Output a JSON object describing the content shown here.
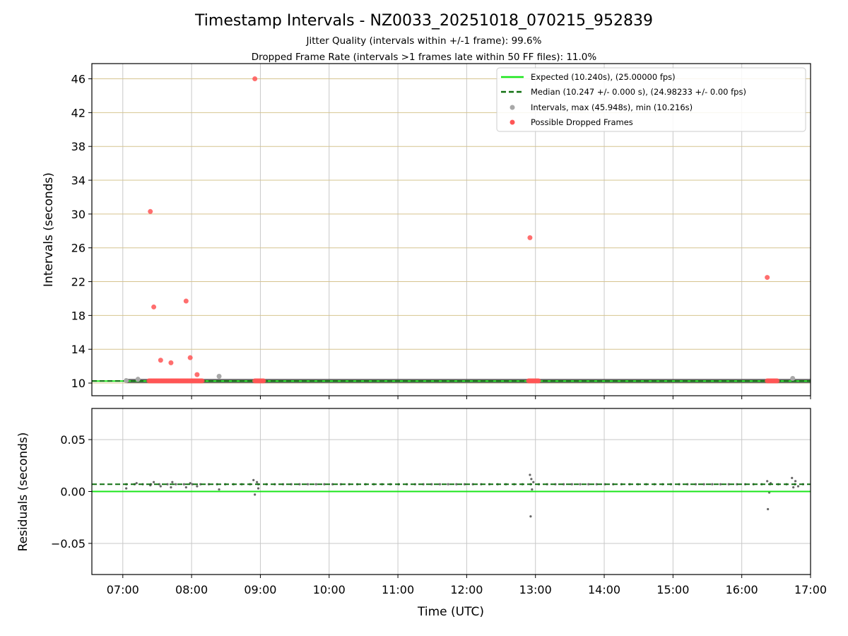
{
  "chart_data": {
    "type": "scatter",
    "title": "Timestamp Intervals - NZ0033_20251018_070215_952839",
    "subtitle_lines": [
      "Jitter Quality (intervals within +/-1 frame): 99.6%",
      "Dropped Frame Rate (intervals >1 frames late within 50 FF files): 11.0%"
    ],
    "xlabel": "Time (UTC)",
    "xlim": [
      6.55,
      17.0
    ],
    "xticks": [
      7,
      8,
      9,
      10,
      11,
      12,
      13,
      14,
      15,
      16,
      17
    ],
    "xtick_labels": [
      "07:00",
      "08:00",
      "09:00",
      "10:00",
      "11:00",
      "12:00",
      "13:00",
      "14:00",
      "15:00",
      "16:00",
      "17:00"
    ],
    "top_panel": {
      "ylabel": "Intervals (seconds)",
      "ylim": [
        8.5,
        47.8
      ],
      "yticks": [
        10,
        14,
        18,
        22,
        26,
        30,
        34,
        38,
        42,
        46
      ],
      "ytick_labels": [
        "10",
        "14",
        "18",
        "22",
        "26",
        "30",
        "34",
        "38",
        "42",
        "46"
      ],
      "expected": 10.24,
      "median": 10.247,
      "legend": [
        {
          "label": "Expected (10.240s), (25.00000 fps)",
          "kind": "solid",
          "color": "#19e619"
        },
        {
          "label": "Median (10.247 +/- 0.000 s), (24.98233 +/- 0.00 fps)",
          "kind": "dashed",
          "color": "#107010"
        },
        {
          "label": "Intervals, max (45.948s), min (10.216s)",
          "kind": "dot",
          "color": "#a8a8a8"
        },
        {
          "label": "Possible Dropped Frames",
          "kind": "dot",
          "color": "#ff5555"
        }
      ],
      "dropped_points": [
        [
          7.4,
          30.3
        ],
        [
          7.45,
          19.0
        ],
        [
          7.55,
          12.7
        ],
        [
          7.7,
          12.4
        ],
        [
          7.92,
          19.7
        ],
        [
          7.98,
          13.0
        ],
        [
          8.08,
          11.0
        ],
        [
          8.92,
          46.0
        ],
        [
          12.92,
          27.2
        ],
        [
          16.37,
          22.5
        ]
      ],
      "dropped_clusters": [
        [
          7.38,
          8.17
        ],
        [
          8.92,
          9.06
        ],
        [
          12.9,
          13.06
        ],
        [
          16.37,
          16.52
        ]
      ],
      "gray_points": [
        [
          7.05,
          10.3
        ],
        [
          7.22,
          10.45
        ],
        [
          8.4,
          10.8
        ],
        [
          16.74,
          10.55
        ]
      ]
    },
    "bottom_panel": {
      "ylabel": "Residuals (seconds)",
      "ylim": [
        -0.08,
        0.08
      ],
      "yticks": [
        -0.05,
        0.0,
        0.05
      ],
      "ytick_labels": [
        "−0.05",
        "0.00",
        "0.05"
      ],
      "expected": 0.0,
      "median": 0.007,
      "residual_points": [
        [
          7.05,
          0.003
        ],
        [
          7.2,
          0.008
        ],
        [
          7.4,
          0.006
        ],
        [
          7.45,
          0.009
        ],
        [
          7.55,
          0.005
        ],
        [
          7.7,
          0.004
        ],
        [
          7.72,
          0.009
        ],
        [
          7.92,
          0.004
        ],
        [
          7.98,
          0.008
        ],
        [
          8.08,
          0.005
        ],
        [
          8.4,
          0.002
        ],
        [
          8.9,
          0.011
        ],
        [
          8.92,
          -0.003
        ],
        [
          8.95,
          0.009
        ],
        [
          8.97,
          0.003
        ],
        [
          12.92,
          0.016
        ],
        [
          12.93,
          -0.024
        ],
        [
          12.94,
          0.012
        ],
        [
          12.95,
          0.002
        ],
        [
          12.97,
          0.009
        ],
        [
          16.37,
          0.01
        ],
        [
          16.38,
          -0.017
        ],
        [
          16.4,
          -0.001
        ],
        [
          16.42,
          0.008
        ],
        [
          16.73,
          0.013
        ],
        [
          16.75,
          0.004
        ],
        [
          16.78,
          0.01
        ],
        [
          16.82,
          0.005
        ]
      ]
    },
    "colors": {
      "expected": "#19e619",
      "median": "#107010",
      "intervals": "#a8a8a8",
      "dropped": "#ff5555",
      "grid_gold": "#d6c48f",
      "grid_gray": "#c8c8c8",
      "residuals": "#666666",
      "band": "#555555"
    }
  }
}
